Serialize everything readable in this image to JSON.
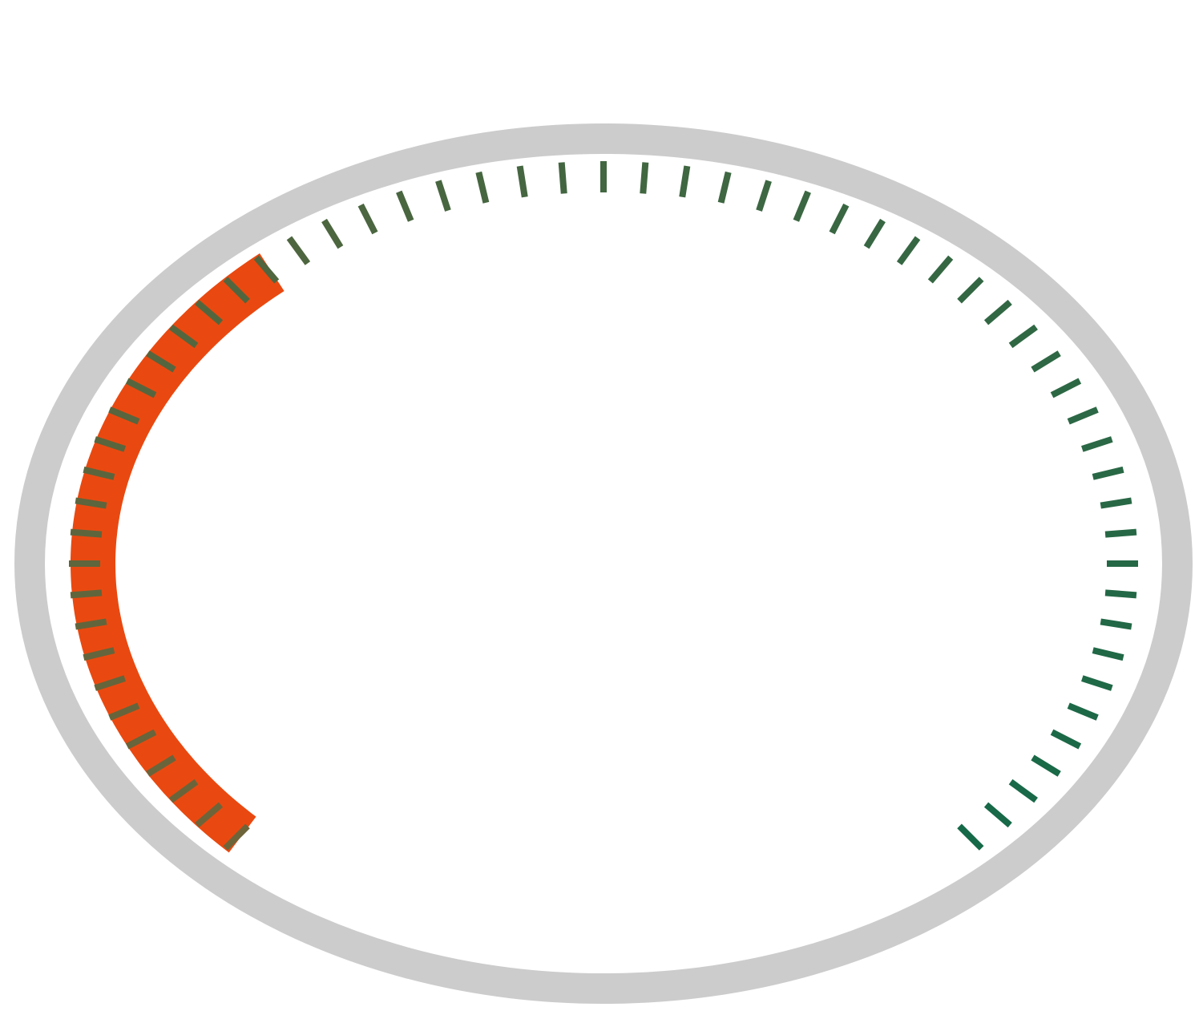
{
  "gauge": {
    "value": 35,
    "range": [
      0,
      100
    ]
  }
}
